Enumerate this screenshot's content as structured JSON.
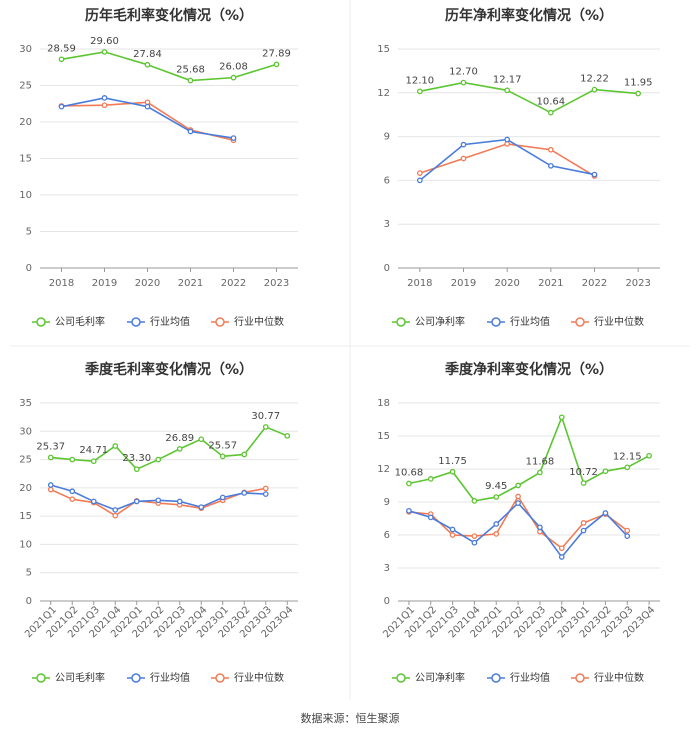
{
  "source_text": "数据来源：恒生聚源",
  "colors": {
    "company": "#5cc531",
    "industry_avg": "#4a7cdc",
    "industry_median": "#f27b56",
    "grid": "#e6e6e6",
    "axis": "#999999",
    "tick": "#666666",
    "label": "#444444",
    "divider": "#eeeeee"
  },
  "chart_data": [
    {
      "type": "line",
      "title": "历年毛利率变化情况（%）",
      "categories": [
        "2018",
        "2019",
        "2020",
        "2021",
        "2022",
        "2023"
      ],
      "ylim": [
        0,
        30
      ],
      "yticks": [
        0,
        5,
        10,
        15,
        20,
        25,
        30
      ],
      "xlabel_rotation": 0,
      "legend": [
        "公司毛利率",
        "行业均值",
        "行业中位数"
      ],
      "series": [
        {
          "name": "公司毛利率",
          "key": "company",
          "values": [
            28.59,
            29.6,
            27.84,
            25.68,
            26.08,
            27.89
          ],
          "labels": [
            "28.59",
            "29.60",
            "27.84",
            "25.68",
            "26.08",
            "27.89"
          ]
        },
        {
          "name": "行业均值",
          "key": "industry_avg",
          "values": [
            22.1,
            23.3,
            22.1,
            18.7,
            17.8,
            null
          ]
        },
        {
          "name": "行业中位数",
          "key": "industry_median",
          "values": [
            22.2,
            22.3,
            22.7,
            18.9,
            17.5,
            null
          ]
        }
      ]
    },
    {
      "type": "line",
      "title": "历年净利率变化情况（%）",
      "categories": [
        "2018",
        "2019",
        "2020",
        "2021",
        "2022",
        "2023"
      ],
      "ylim": [
        0,
        15
      ],
      "yticks": [
        0,
        3,
        6,
        9,
        12,
        15
      ],
      "xlabel_rotation": 0,
      "legend": [
        "公司净利率",
        "行业均值",
        "行业中位数"
      ],
      "series": [
        {
          "name": "公司净利率",
          "key": "company",
          "values": [
            12.1,
            12.7,
            12.17,
            10.64,
            12.22,
            11.95
          ],
          "labels": [
            "12.10",
            "12.70",
            "12.17",
            "10.64",
            "12.22",
            "11.95"
          ]
        },
        {
          "name": "行业均值",
          "key": "industry_avg",
          "values": [
            6.0,
            8.45,
            8.8,
            7.0,
            6.4,
            null
          ]
        },
        {
          "name": "行业中位数",
          "key": "industry_median",
          "values": [
            6.5,
            7.5,
            8.5,
            8.1,
            6.3,
            null
          ]
        }
      ]
    },
    {
      "type": "line",
      "title": "季度毛利率变化情况（%）",
      "categories": [
        "2021Q1",
        "2021Q2",
        "2021Q3",
        "2021Q4",
        "2022Q1",
        "2022Q2",
        "2022Q3",
        "2022Q4",
        "2023Q1",
        "2023Q2",
        "2023Q3",
        "2023Q4"
      ],
      "ylim": [
        0,
        35
      ],
      "yticks": [
        0,
        5,
        10,
        15,
        20,
        25,
        30,
        35
      ],
      "xlabel_rotation": -45,
      "legend": [
        "公司毛利率",
        "行业均值",
        "行业中位数"
      ],
      "series": [
        {
          "name": "公司毛利率",
          "key": "company",
          "values": [
            25.37,
            25.0,
            24.71,
            27.4,
            23.3,
            25.0,
            26.89,
            28.6,
            25.57,
            25.9,
            30.77,
            29.2
          ],
          "labels": [
            "25.37",
            null,
            "24.71",
            null,
            "23.30",
            null,
            "26.89",
            null,
            "25.57",
            null,
            "30.77",
            null
          ]
        },
        {
          "name": "行业均值",
          "key": "industry_avg",
          "values": [
            20.5,
            19.4,
            17.6,
            16.1,
            17.6,
            17.8,
            17.6,
            16.6,
            18.3,
            19.1,
            18.9,
            null
          ]
        },
        {
          "name": "行业中位数",
          "key": "industry_median",
          "values": [
            19.7,
            18.0,
            17.4,
            15.1,
            17.7,
            17.3,
            17.0,
            16.4,
            17.8,
            19.2,
            19.9,
            null
          ]
        }
      ]
    },
    {
      "type": "line",
      "title": "季度净利率变化情况（%）",
      "categories": [
        "2021Q1",
        "2021Q2",
        "2021Q3",
        "2021Q4",
        "2022Q1",
        "2022Q2",
        "2022Q3",
        "2022Q4",
        "2023Q1",
        "2023Q2",
        "2023Q3",
        "2023Q4"
      ],
      "ylim": [
        0,
        18
      ],
      "yticks": [
        0,
        3,
        6,
        9,
        12,
        15,
        18
      ],
      "xlabel_rotation": -45,
      "legend": [
        "公司净利率",
        "行业均值",
        "行业中位数"
      ],
      "series": [
        {
          "name": "公司净利率",
          "key": "company",
          "values": [
            10.68,
            11.1,
            11.75,
            9.1,
            9.45,
            10.5,
            11.68,
            16.7,
            10.72,
            11.8,
            12.15,
            13.2
          ],
          "labels": [
            "10.68",
            null,
            "11.75",
            null,
            "9.45",
            null,
            "11.68",
            null,
            "10.72",
            null,
            "12.15",
            null
          ]
        },
        {
          "name": "行业均值",
          "key": "industry_avg",
          "values": [
            8.2,
            7.6,
            6.5,
            5.3,
            7.0,
            8.9,
            6.7,
            4.0,
            6.4,
            8.0,
            5.9,
            null
          ]
        },
        {
          "name": "行业中位数",
          "key": "industry_median",
          "values": [
            8.1,
            7.9,
            6.0,
            5.9,
            6.1,
            9.5,
            6.3,
            4.8,
            7.1,
            7.9,
            6.4,
            null
          ]
        }
      ]
    }
  ]
}
